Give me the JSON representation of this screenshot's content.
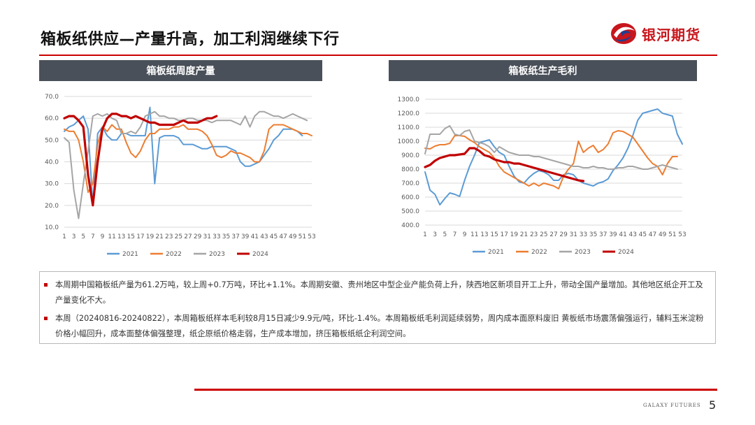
{
  "title": "箱板纸供应—产量升高，加工利润继续下行",
  "logo": {
    "text": "银河期货",
    "icon": "galaxy-logo-icon"
  },
  "colors": {
    "accent": "#c00000",
    "header_bg": "#4a5059",
    "s2021": "#5b9bd5",
    "s2022": "#ed7d31",
    "s2023": "#a5a5a5",
    "s2024": "#c00000"
  },
  "charts": {
    "left": {
      "header": "箱板纸周度产量"
    },
    "right": {
      "header": "箱板纸生产毛利"
    }
  },
  "chart_data": [
    {
      "type": "line",
      "title": "箱板纸周度产量",
      "xlabel": "",
      "ylabel": "",
      "x_ticks": [
        "1",
        "3",
        "5",
        "7",
        "9",
        "11",
        "13",
        "15",
        "17",
        "19",
        "21",
        "23",
        "25",
        "27",
        "29",
        "31",
        "33",
        "35",
        "37",
        "39",
        "41",
        "43",
        "45",
        "47",
        "49",
        "51",
        "53"
      ],
      "y_ticks": [
        "10.0",
        "20.0",
        "30.0",
        "40.0",
        "50.0",
        "60.0",
        "70.0"
      ],
      "ylim": [
        10,
        70
      ],
      "grid": true,
      "legend": "bottom",
      "series": [
        {
          "name": "2021",
          "color": "#5b9bd5",
          "values": [
            54,
            56,
            57,
            59,
            61,
            55,
            20,
            53,
            56,
            52,
            50,
            50,
            53,
            53,
            52,
            52,
            52,
            52,
            65,
            30,
            51,
            52,
            52,
            52,
            51,
            48,
            48,
            48,
            47,
            46,
            46,
            47,
            47,
            47,
            47,
            46,
            45,
            40,
            38,
            38,
            39,
            40,
            43,
            46,
            50,
            52,
            55,
            55,
            55,
            54,
            52
          ]
        },
        {
          "name": "2022",
          "color": "#ed7d31",
          "values": [
            55,
            54,
            54,
            50,
            40,
            26,
            30,
            48,
            56,
            54,
            57,
            55,
            55,
            49,
            44,
            42,
            45,
            50,
            53,
            53,
            55,
            55,
            55,
            56,
            56,
            57,
            55,
            55,
            55,
            54,
            52,
            48,
            43,
            42,
            43,
            45,
            44,
            44,
            43,
            42,
            40,
            40,
            45,
            55,
            57,
            57,
            57,
            56,
            55,
            54,
            53,
            53,
            52
          ]
        },
        {
          "name": "2023",
          "color": "#a5a5a5",
          "values": [
            51,
            49,
            27,
            14,
            30,
            45,
            61,
            62,
            61,
            62,
            60,
            59,
            53,
            53,
            54,
            53,
            56,
            61,
            62,
            63,
            61,
            61,
            60,
            60,
            59,
            59,
            60,
            60,
            59,
            59,
            59,
            58,
            59,
            59,
            59,
            59,
            58,
            57,
            61,
            56,
            61,
            63,
            63,
            62,
            61,
            61,
            60,
            61,
            62,
            61,
            60,
            59
          ]
        },
        {
          "name": "2024",
          "color": "#c00000",
          "values": [
            60,
            61,
            61,
            59,
            56,
            34,
            20,
            40,
            55,
            60,
            62,
            62,
            61,
            61,
            60,
            61,
            60,
            59,
            58,
            58,
            57,
            57,
            57,
            57,
            58,
            59,
            58,
            58,
            58,
            59,
            60,
            60,
            61
          ]
        }
      ]
    },
    {
      "type": "line",
      "title": "箱板纸生产毛利",
      "xlabel": "",
      "ylabel": "",
      "x_ticks": [
        "1",
        "3",
        "5",
        "7",
        "9",
        "11",
        "13",
        "15",
        "17",
        "19",
        "21",
        "23",
        "25",
        "27",
        "29",
        "31",
        "33",
        "35",
        "37",
        "39",
        "41",
        "43",
        "45",
        "47",
        "49",
        "51",
        "53"
      ],
      "y_ticks": [
        "400.0",
        "500.0",
        "600.0",
        "700.0",
        "800.0",
        "900.0",
        "1000.0",
        "1100.0",
        "1200.0",
        "1300.0"
      ],
      "ylim": [
        400,
        1300
      ],
      "grid": true,
      "legend": "bottom",
      "series": [
        {
          "name": "2021",
          "color": "#5b9bd5",
          "values": [
            780,
            650,
            620,
            545,
            590,
            630,
            620,
            605,
            720,
            820,
            900,
            990,
            1000,
            1010,
            960,
            920,
            900,
            820,
            750,
            710,
            700,
            740,
            770,
            790,
            780,
            760,
            720,
            720,
            760,
            770,
            760,
            720,
            700,
            690,
            680,
            700,
            710,
            730,
            790,
            830,
            880,
            950,
            1040,
            1150,
            1200,
            1210,
            1220,
            1230,
            1200,
            1190,
            1180,
            1050,
            980
          ]
        },
        {
          "name": "2022",
          "color": "#ed7d31",
          "values": [
            950,
            945,
            965,
            975,
            975,
            985,
            1040,
            1040,
            1035,
            1010,
            990,
            960,
            940,
            920,
            880,
            820,
            780,
            760,
            740,
            720,
            700,
            680,
            700,
            680,
            700,
            690,
            680,
            660,
            750,
            800,
            840,
            1000,
            920,
            950,
            970,
            920,
            940,
            980,
            1060,
            1075,
            1070,
            1050,
            1030,
            980,
            930,
            880,
            840,
            820,
            760,
            840,
            890,
            890
          ]
        },
        {
          "name": "2023",
          "color": "#a5a5a5",
          "values": [
            910,
            1050,
            1050,
            1050,
            1090,
            1110,
            1050,
            1040,
            1070,
            1080,
            1000,
            990,
            980,
            960,
            920,
            960,
            940,
            920,
            910,
            900,
            900,
            900,
            890,
            890,
            880,
            870,
            860,
            850,
            840,
            830,
            820,
            820,
            810,
            810,
            820,
            810,
            810,
            800,
            800,
            810,
            810,
            820,
            820,
            810,
            800,
            800,
            810,
            820,
            830,
            820,
            810,
            800
          ]
        },
        {
          "name": "2024",
          "color": "#c00000",
          "values": [
            815,
            830,
            860,
            880,
            890,
            900,
            900,
            905,
            910,
            950,
            950,
            930,
            900,
            890,
            870,
            860,
            850,
            850,
            840,
            840,
            830,
            820,
            810,
            800,
            790,
            780,
            770,
            760,
            750,
            740,
            730,
            720,
            715
          ]
        }
      ]
    }
  ],
  "notes": [
    {
      "text": "本周期中国箱板纸产量为61.2万吨，较上周+0.7万吨，环比+1.1%。本周期安徽、贵州地区中型企业产能负荷上升，陕西地区新项目开工上升，带动全国产量增加。其他地区纸企开工及产量变化不大。"
    },
    {
      "text": "本周（20240816-20240822），本周箱板纸样本毛利较8月15日减少9.9元/吨，环比-1.4%。本周箱板纸毛利润延续弱势，周内成本面原料废旧 黄板纸市场震荡偏强运行，辅料玉米淀粉价格小幅回升，成本面整体偏强整理，纸企原纸价格走弱，生产成本增加，挤压箱板纸纸企利润空间。"
    }
  ],
  "footer": {
    "brand": "GALAXY FUTURES",
    "page": "5"
  }
}
